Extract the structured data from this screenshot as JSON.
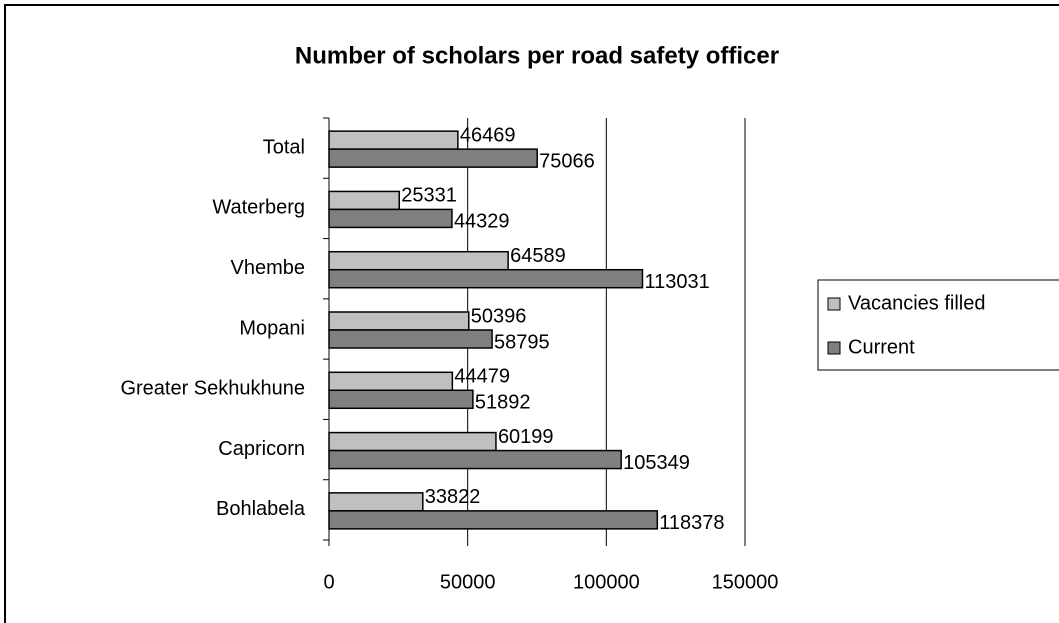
{
  "chart_data": {
    "type": "bar",
    "orientation": "horizontal",
    "title": "Number of scholars per road safety officer",
    "categories": [
      "Total",
      "Waterberg",
      "Vhembe",
      "Mopani",
      "Greater Sekhukhune",
      "Capricorn",
      "Bohlabela"
    ],
    "series": [
      {
        "name": "Vacancies filled",
        "color": "#c0c0c0",
        "values": [
          46469,
          25331,
          64589,
          50396,
          44479,
          60199,
          33822
        ]
      },
      {
        "name": "Current",
        "color": "#808080",
        "values": [
          75066,
          44329,
          113031,
          58795,
          51892,
          105349,
          118378
        ]
      }
    ],
    "xlim": [
      0,
      150000
    ],
    "xticks": [
      0,
      50000,
      100000,
      150000
    ],
    "grid": true,
    "legend": "right"
  }
}
